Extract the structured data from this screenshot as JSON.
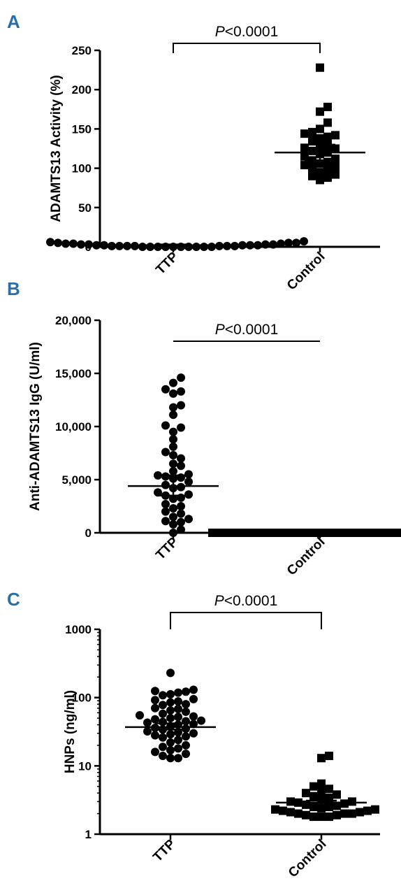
{
  "chart_data": [
    {
      "type": "scatter",
      "panel": "A",
      "ylabel": "ADAMTS13 Activity (%)",
      "ylim": [
        0,
        250
      ],
      "yticks": [
        "0",
        "50",
        "100",
        "150",
        "200",
        "250"
      ],
      "yscale": "linear",
      "categories": [
        "TTP",
        "Control"
      ],
      "annotation": "P<0.0001",
      "bracket": "bracket",
      "series": [
        {
          "category": "TTP",
          "marker": "circle",
          "mean": 2,
          "sem": [
            1,
            3
          ],
          "values": [
            0,
            0,
            0,
            0,
            0,
            1,
            0,
            1,
            0,
            1,
            2,
            0,
            1,
            1,
            2,
            0,
            1,
            2,
            3,
            1,
            2,
            3,
            0,
            2,
            4,
            5,
            3,
            6,
            4,
            5,
            7,
            5,
            4,
            3
          ]
        },
        {
          "category": "Control",
          "marker": "square",
          "mean": 120,
          "sem": [
            110,
            130
          ],
          "values": [
            228,
            178,
            172,
            158,
            150,
            146,
            144,
            142,
            140,
            138,
            136,
            130,
            128,
            126,
            125,
            122,
            120,
            118,
            115,
            112,
            110,
            108,
            106,
            104,
            102,
            100,
            98,
            95,
            92,
            90,
            88,
            85
          ]
        }
      ]
    },
    {
      "type": "scatter",
      "panel": "B",
      "ylabel": "Anti-ADAMTS13 IgG (U/ml)",
      "ylim": [
        0,
        20000
      ],
      "yticks": [
        "0",
        "5,000",
        "10,000",
        "15,000",
        "20,000"
      ],
      "yscale": "linear",
      "categories": [
        "TTP",
        "Control"
      ],
      "annotation": "P<0.0001",
      "bracket": "line",
      "series": [
        {
          "category": "TTP",
          "marker": "circle",
          "mean": 4400,
          "sem": [
            3500,
            5400
          ],
          "values": [
            14600,
            14100,
            13500,
            13300,
            13100,
            12000,
            11800,
            11100,
            10100,
            9900,
            9500,
            8800,
            8100,
            7600,
            7300,
            7000,
            6500,
            6300,
            5800,
            5500,
            5400,
            5300,
            5200,
            5100,
            4800,
            4500,
            4300,
            4200,
            3800,
            3600,
            3500,
            3300,
            3200,
            2700,
            2500,
            2300,
            2000,
            1800,
            1500,
            1300,
            1100,
            1000,
            800,
            300,
            0
          ]
        },
        {
          "category": "Control",
          "marker": "square",
          "mean": 50,
          "sem": [
            20,
            80
          ],
          "values": [
            0,
            0,
            0,
            0,
            0,
            0,
            0,
            0,
            0,
            0,
            0,
            0,
            0,
            0,
            0,
            0,
            0,
            0,
            0,
            0,
            0,
            0,
            0,
            0,
            0,
            0,
            0,
            0,
            0,
            0
          ]
        }
      ]
    },
    {
      "type": "scatter",
      "panel": "C",
      "ylabel": "HNPs (ng/ml)",
      "ylim": [
        1,
        1000
      ],
      "yticks": [
        "1",
        "10",
        "100",
        "1000"
      ],
      "yscale": "log",
      "categories": [
        "TTP",
        "Control"
      ],
      "annotation": "P<0.0001",
      "bracket": "bracket",
      "series": [
        {
          "category": "TTP",
          "marker": "circle",
          "mean": 37,
          "sem": [
            34,
            42
          ],
          "values": [
            230,
            130,
            125,
            122,
            118,
            112,
            108,
            95,
            92,
            88,
            85,
            80,
            78,
            70,
            68,
            65,
            62,
            58,
            55,
            53,
            52,
            50,
            48,
            46,
            45,
            44,
            43,
            41,
            40,
            38,
            36,
            35,
            34,
            32,
            31,
            30,
            29,
            28,
            27,
            26,
            24,
            22,
            20,
            19,
            18,
            17,
            16,
            15,
            14,
            13,
            13
          ]
        },
        {
          "category": "Control",
          "marker": "square",
          "mean": 2.9,
          "sem": [
            2.7,
            3.1
          ],
          "values": [
            14,
            13,
            5.5,
            5,
            4.6,
            4.2,
            4,
            3.8,
            3.6,
            3.4,
            3.2,
            3,
            3,
            2.9,
            2.8,
            2.7,
            2.6,
            2.5,
            2.5,
            2.4,
            2.3,
            2.3,
            2.2,
            2.2,
            2.1,
            2.1,
            2,
            2,
            2,
            1.9,
            1.9,
            1.8,
            1.8,
            1.8
          ]
        }
      ]
    }
  ]
}
